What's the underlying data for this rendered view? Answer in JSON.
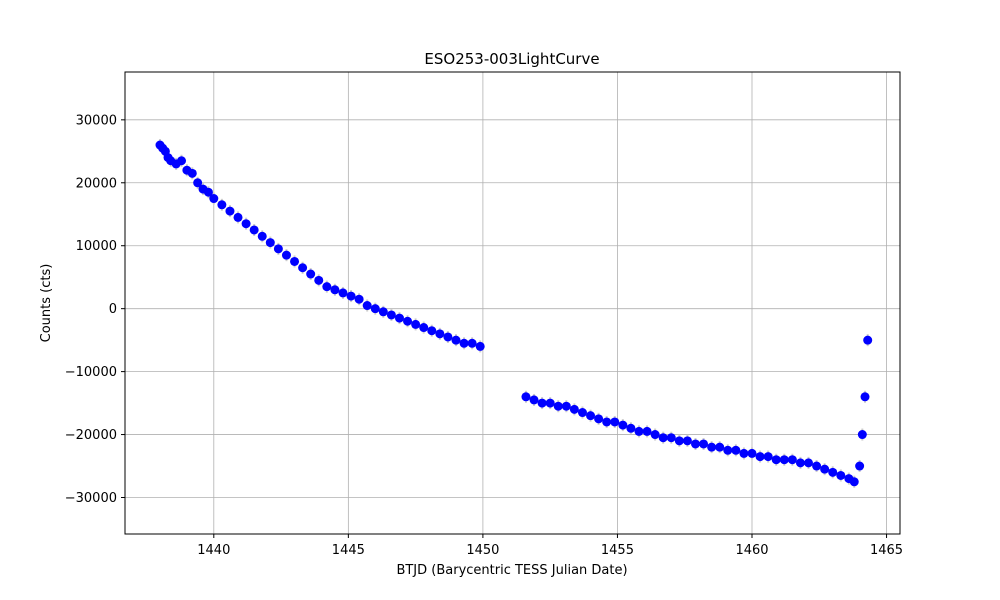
{
  "chart_data": {
    "type": "scatter",
    "title": "ESO253-003LightCurve",
    "xlabel": "BTJD (Barycentric TESS Julian Date)",
    "ylabel": "Counts (cts)",
    "xlim": [
      1436.7,
      1465.5
    ],
    "ylim": [
      -35800,
      37600
    ],
    "xticks": [
      1440,
      1445,
      1450,
      1455,
      1460,
      1465
    ],
    "xtick_labels": [
      "1440",
      "1445",
      "1450",
      "1455",
      "1460",
      "1465"
    ],
    "yticks": [
      -30000,
      -20000,
      -10000,
      0,
      10000,
      20000,
      30000
    ],
    "ytick_labels": [
      "−30000",
      "−20000",
      "−10000",
      "0",
      "10000",
      "20000",
      "30000"
    ],
    "grid": true,
    "marker_color": "#0000ff",
    "errorbar_color": "#cccccc",
    "series": [
      {
        "x": [
          1438.0,
          1438.1,
          1438.2,
          1438.3,
          1438.4,
          1438.6,
          1438.8,
          1439.0,
          1439.2,
          1439.4,
          1439.6,
          1439.8,
          1440.0,
          1440.3,
          1440.6,
          1440.9,
          1441.2,
          1441.5,
          1441.8,
          1442.1,
          1442.4,
          1442.7,
          1443.0,
          1443.3,
          1443.6,
          1443.9,
          1444.2,
          1444.5,
          1444.8,
          1445.1,
          1445.4,
          1445.7,
          1446.0,
          1446.3,
          1446.6,
          1446.9,
          1447.2,
          1447.5,
          1447.8,
          1448.1,
          1448.4,
          1448.7,
          1449.0,
          1449.3,
          1449.6,
          1449.9,
          1451.6,
          1451.9,
          1452.2,
          1452.5,
          1452.8,
          1453.1,
          1453.4,
          1453.7,
          1454.0,
          1454.3,
          1454.6,
          1454.9,
          1455.2,
          1455.5,
          1455.8,
          1456.1,
          1456.4,
          1456.7,
          1457.0,
          1457.3,
          1457.6,
          1457.9,
          1458.2,
          1458.5,
          1458.8,
          1459.1,
          1459.4,
          1459.7,
          1460.0,
          1460.3,
          1460.6,
          1460.9,
          1461.2,
          1461.5,
          1461.8,
          1462.1,
          1462.4,
          1462.7,
          1463.0,
          1463.3,
          1463.6,
          1463.8,
          1464.0,
          1464.1,
          1464.2,
          1464.3
        ],
        "y": [
          26000,
          25500,
          25000,
          24000,
          23500,
          23000,
          23500,
          22000,
          21500,
          20000,
          19000,
          18500,
          17500,
          16500,
          15500,
          14500,
          13500,
          12500,
          11500,
          10500,
          9500,
          8500,
          7500,
          6500,
          5500,
          4500,
          3500,
          3000,
          2500,
          2000,
          1500,
          500,
          0,
          -500,
          -1000,
          -1500,
          -2000,
          -2500,
          -3000,
          -3500,
          -4000,
          -4500,
          -5000,
          -5500,
          -5500,
          -6000,
          -14000,
          -14500,
          -15000,
          -15000,
          -15500,
          -15500,
          -16000,
          -16500,
          -17000,
          -17500,
          -18000,
          -18000,
          -18500,
          -19000,
          -19500,
          -19500,
          -20000,
          -20500,
          -20500,
          -21000,
          -21000,
          -21500,
          -21500,
          -22000,
          -22000,
          -22500,
          -22500,
          -23000,
          -23000,
          -23500,
          -23500,
          -24000,
          -24000,
          -24000,
          -24500,
          -24500,
          -25000,
          -25500,
          -26000,
          -26500,
          -27000,
          -27500,
          -25000,
          -20000,
          -14000,
          -5000
        ]
      }
    ]
  }
}
